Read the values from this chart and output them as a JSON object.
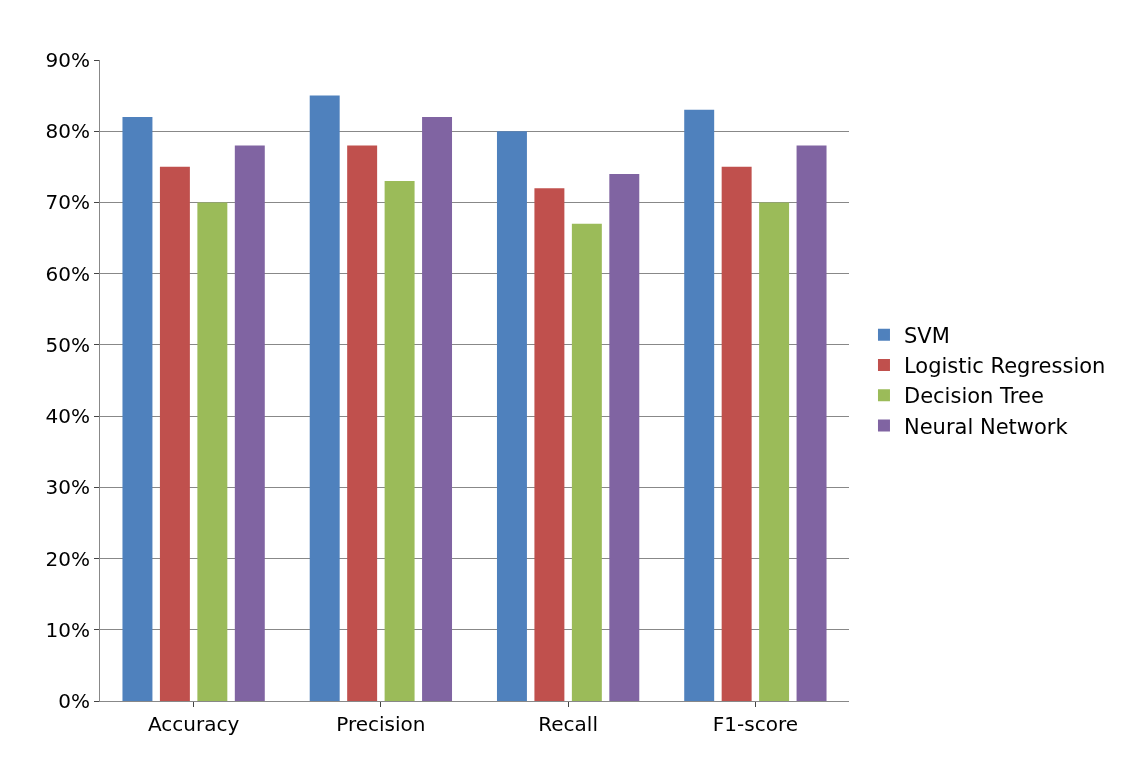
{
  "chart_data": {
    "type": "bar",
    "categories": [
      "Accuracy",
      "Precision",
      "Recall",
      "F1-score"
    ],
    "series": [
      {
        "name": "SVM",
        "color": "#4f81bd",
        "values": [
          82,
          85,
          80,
          83
        ]
      },
      {
        "name": "Logistic Regression",
        "color": "#c0504d",
        "values": [
          75,
          78,
          72,
          75
        ]
      },
      {
        "name": "Decision Tree",
        "color": "#9bbb59",
        "values": [
          70,
          73,
          67,
          70
        ]
      },
      {
        "name": "Neural Network",
        "color": "#8064a2",
        "values": [
          78,
          82,
          74,
          78
        ]
      }
    ],
    "ylim": [
      0,
      90
    ],
    "yticks": [
      {
        "value": 0,
        "label": "0%"
      },
      {
        "value": 10,
        "label": "10%"
      },
      {
        "value": 20,
        "label": "20%"
      },
      {
        "value": 30,
        "label": "30%"
      },
      {
        "value": 40,
        "label": "40%"
      },
      {
        "value": 50,
        "label": "50%"
      },
      {
        "value": 60,
        "label": "60%"
      },
      {
        "value": 70,
        "label": "70%"
      },
      {
        "value": 80,
        "label": "80%"
      },
      {
        "value": 90,
        "label": "90%"
      }
    ],
    "grid": "y",
    "legend": "right"
  }
}
